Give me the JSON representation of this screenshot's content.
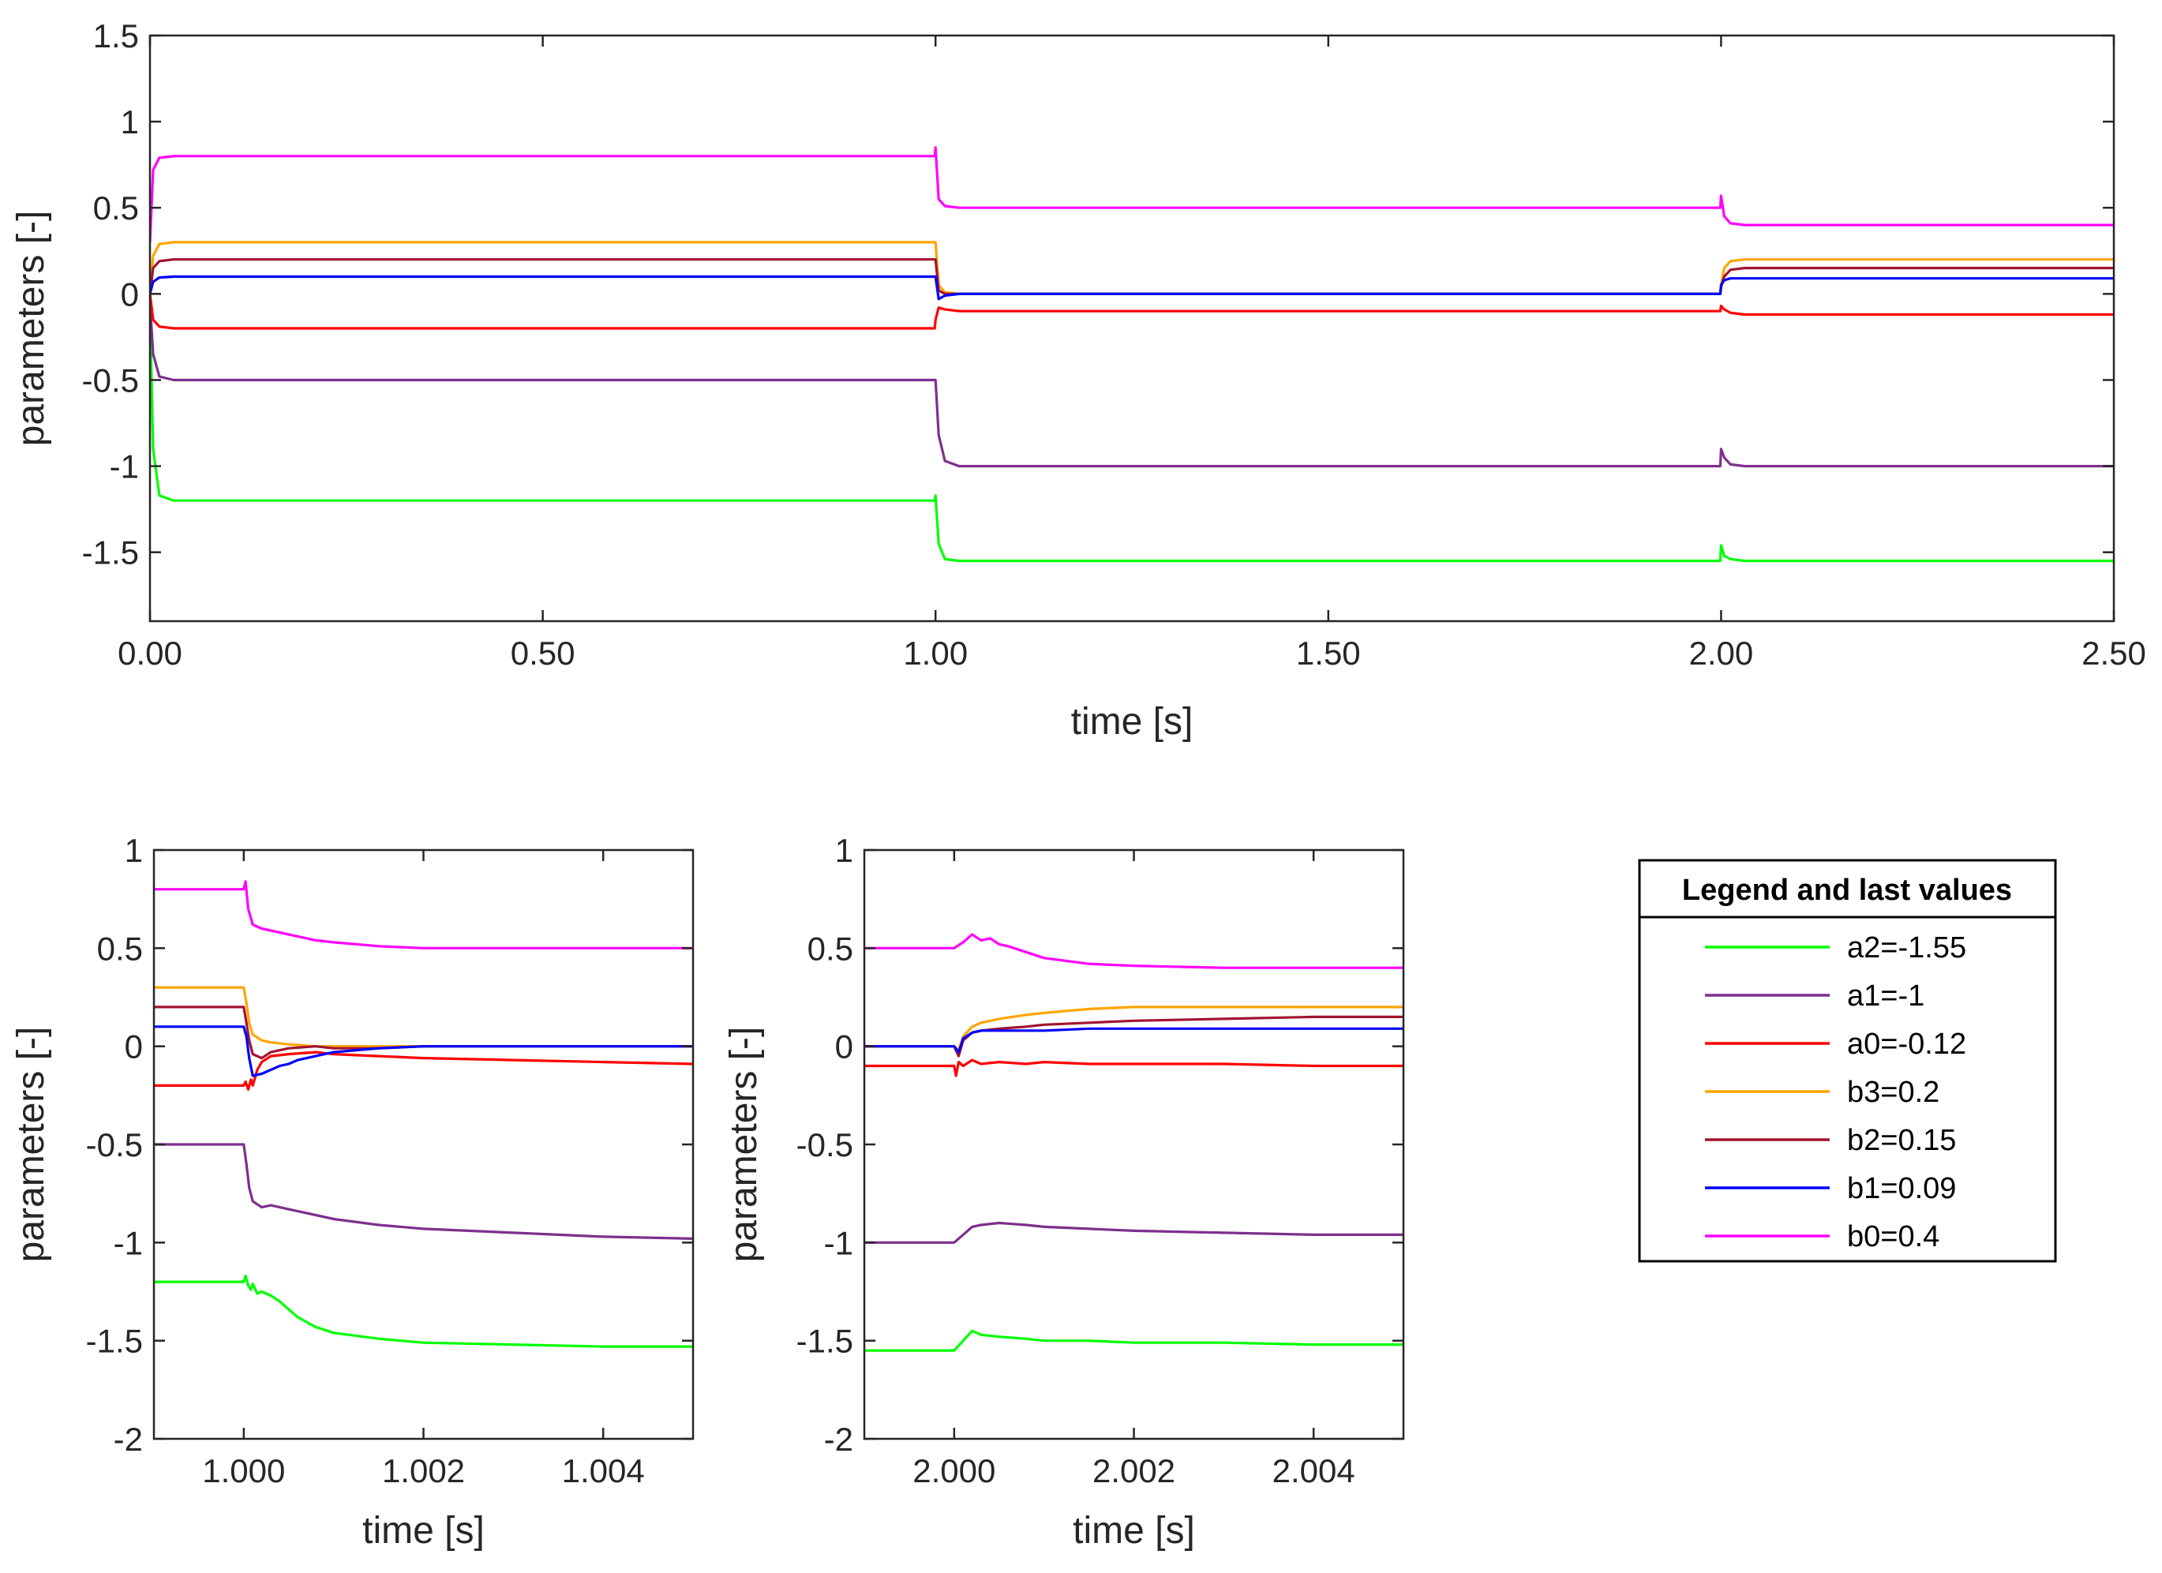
{
  "chart_data": [
    {
      "type": "line",
      "id": "overview",
      "xlabel": "time [s]",
      "ylabel": "parameters [-]",
      "xlim": [
        0,
        2.5
      ],
      "ylim": [
        -1.9,
        1.5
      ],
      "xticks": [
        0,
        0.5,
        1,
        1.5,
        2,
        2.5
      ],
      "xtick_labels": [
        "0.00",
        "0.50",
        "1.00",
        "1.50",
        "2.00",
        "2.50"
      ],
      "yticks": [
        -1.5,
        -1,
        -0.5,
        0,
        0.5,
        1,
        1.5
      ],
      "ytick_labels": [
        "-1.5",
        "-1",
        "-0.5",
        "0",
        "0.5",
        "1",
        "1.5"
      ],
      "grid": false,
      "series": [
        {
          "name": "a2",
          "color": "#00ff00",
          "x": [
            0,
            0.004,
            0.012,
            0.03,
            0.999,
            1.0,
            1.004,
            1.012,
            1.03,
            1.999,
            2.0,
            2.004,
            2.012,
            2.03,
            2.5
          ],
          "y": [
            -0.1,
            -0.9,
            -1.17,
            -1.2,
            -1.2,
            -1.17,
            -1.45,
            -1.54,
            -1.55,
            -1.55,
            -1.46,
            -1.52,
            -1.54,
            -1.55,
            -1.55
          ]
        },
        {
          "name": "a1",
          "color": "#7e2f8e",
          "x": [
            0,
            0.004,
            0.012,
            0.03,
            0.999,
            1.0,
            1.004,
            1.012,
            1.03,
            1.999,
            2.0,
            2.004,
            2.012,
            2.03,
            2.5
          ],
          "y": [
            -0.05,
            -0.35,
            -0.48,
            -0.5,
            -0.5,
            -0.5,
            -0.82,
            -0.97,
            -1.0,
            -1.0,
            -0.9,
            -0.95,
            -0.99,
            -1.0,
            -1.0
          ]
        },
        {
          "name": "a0",
          "color": "#ff0000",
          "x": [
            0,
            0.004,
            0.012,
            0.03,
            0.999,
            1.0,
            1.004,
            1.012,
            1.03,
            1.999,
            2.0,
            2.004,
            2.012,
            2.03,
            2.5
          ],
          "y": [
            0,
            -0.15,
            -0.19,
            -0.2,
            -0.2,
            -0.15,
            -0.08,
            -0.09,
            -0.1,
            -0.1,
            -0.07,
            -0.09,
            -0.11,
            -0.12,
            -0.12
          ]
        },
        {
          "name": "b3",
          "color": "#ffa500",
          "x": [
            0,
            0.004,
            0.012,
            0.03,
            0.999,
            1.0,
            1.004,
            1.012,
            1.03,
            1.999,
            2.0,
            2.004,
            2.012,
            2.03,
            2.5
          ],
          "y": [
            0,
            0.22,
            0.29,
            0.3,
            0.3,
            0.3,
            0.05,
            0.01,
            0.0,
            0.0,
            0.05,
            0.15,
            0.19,
            0.2,
            0.2
          ]
        },
        {
          "name": "b2",
          "color": "#a2142f",
          "x": [
            0,
            0.004,
            0.012,
            0.03,
            0.999,
            1.0,
            1.004,
            1.012,
            1.03,
            1.999,
            2.0,
            2.004,
            2.012,
            2.03,
            2.5
          ],
          "y": [
            0,
            0.15,
            0.19,
            0.2,
            0.2,
            0.2,
            0.02,
            0.0,
            0.0,
            0.0,
            0.04,
            0.1,
            0.14,
            0.15,
            0.15
          ]
        },
        {
          "name": "b1",
          "color": "#0000ff",
          "x": [
            0,
            0.004,
            0.012,
            0.03,
            0.999,
            1.0,
            1.004,
            1.012,
            1.03,
            1.999,
            2.0,
            2.004,
            2.012,
            2.03,
            2.5
          ],
          "y": [
            0,
            0.07,
            0.095,
            0.1,
            0.1,
            0.1,
            -0.03,
            -0.01,
            0.0,
            0.0,
            0.05,
            0.08,
            0.09,
            0.09,
            0.09
          ]
        },
        {
          "name": "b0",
          "color": "#ff00ff",
          "x": [
            0,
            0.004,
            0.012,
            0.03,
            0.999,
            1.0,
            1.004,
            1.012,
            1.03,
            1.999,
            2.0,
            2.004,
            2.012,
            2.03,
            2.5
          ],
          "y": [
            0.3,
            0.72,
            0.79,
            0.8,
            0.8,
            0.85,
            0.55,
            0.51,
            0.5,
            0.5,
            0.57,
            0.45,
            0.41,
            0.4,
            0.4
          ]
        }
      ]
    },
    {
      "type": "line",
      "id": "zoom1",
      "xlabel": "time [s]",
      "ylabel": "parameters [-]",
      "xlim": [
        0.999,
        1.005
      ],
      "ylim": [
        -2,
        1
      ],
      "xticks": [
        1.0,
        1.002,
        1.004
      ],
      "xtick_labels": [
        "1.000",
        "1.002",
        "1.004"
      ],
      "yticks": [
        -2,
        -1.5,
        -1,
        -0.5,
        0,
        0.5,
        1
      ],
      "ytick_labels": [
        "-2",
        "-1.5",
        "-1",
        "-0.5",
        "0",
        "0.5",
        "1"
      ],
      "grid": false,
      "series": [
        {
          "name": "a2",
          "color": "#00ff00",
          "x": [
            0.999,
            1.0,
            1.00002,
            1.00005,
            1.00008,
            1.0001,
            1.00015,
            1.0002,
            1.0003,
            1.0004,
            1.0005,
            1.0006,
            1.0008,
            1.001,
            1.0015,
            1.002,
            1.003,
            1.004,
            1.005
          ],
          "y": [
            -1.2,
            -1.2,
            -1.17,
            -1.22,
            -1.24,
            -1.21,
            -1.26,
            -1.25,
            -1.27,
            -1.3,
            -1.34,
            -1.38,
            -1.43,
            -1.46,
            -1.49,
            -1.51,
            -1.52,
            -1.53,
            -1.53
          ]
        },
        {
          "name": "a1",
          "color": "#7e2f8e",
          "x": [
            0.999,
            1.0,
            1.00003,
            1.00006,
            1.0001,
            1.0002,
            1.0003,
            1.0005,
            1.0008,
            1.001,
            1.0015,
            1.002,
            1.003,
            1.004,
            1.005
          ],
          "y": [
            -0.5,
            -0.5,
            -0.6,
            -0.72,
            -0.79,
            -0.82,
            -0.81,
            -0.83,
            -0.86,
            -0.88,
            -0.91,
            -0.93,
            -0.95,
            -0.97,
            -0.98
          ]
        },
        {
          "name": "a0",
          "color": "#ff0000",
          "x": [
            0.999,
            1.0,
            1.00002,
            1.00005,
            1.00008,
            1.0001,
            1.00015,
            1.0002,
            1.0003,
            1.0005,
            1.0008,
            1.001,
            1.0015,
            1.002,
            1.003,
            1.004,
            1.005
          ],
          "y": [
            -0.2,
            -0.2,
            -0.18,
            -0.22,
            -0.17,
            -0.2,
            -0.12,
            -0.08,
            -0.05,
            -0.04,
            -0.03,
            -0.04,
            -0.05,
            -0.06,
            -0.07,
            -0.08,
            -0.09
          ]
        },
        {
          "name": "b3",
          "color": "#ffa500",
          "x": [
            0.999,
            1.0,
            1.00003,
            1.00006,
            1.0001,
            1.0002,
            1.0003,
            1.0005,
            1.0008,
            1.001,
            1.0015,
            1.002,
            1.003,
            1.004,
            1.005
          ],
          "y": [
            0.3,
            0.3,
            0.22,
            0.12,
            0.06,
            0.03,
            0.02,
            0.01,
            0.0,
            0.0,
            0.0,
            0.0,
            0.0,
            0.0,
            0.0
          ]
        },
        {
          "name": "b2",
          "color": "#a2142f",
          "x": [
            0.999,
            1.0,
            1.00003,
            1.00006,
            1.0001,
            1.0002,
            1.0003,
            1.0005,
            1.0008,
            1.001,
            1.0015,
            1.002,
            1.003,
            1.004,
            1.005
          ],
          "y": [
            0.2,
            0.2,
            0.12,
            0.03,
            -0.04,
            -0.06,
            -0.03,
            -0.01,
            0.0,
            -0.01,
            -0.01,
            0.0,
            0.0,
            0.0,
            0.0
          ]
        },
        {
          "name": "b1",
          "color": "#0000ff",
          "x": [
            0.999,
            1.0,
            1.00003,
            1.00006,
            1.0001,
            1.0002,
            1.0003,
            1.0004,
            1.0005,
            1.0006,
            1.0008,
            1.001,
            1.0015,
            1.002,
            1.003,
            1.004,
            1.005
          ],
          "y": [
            0.1,
            0.1,
            0.05,
            -0.06,
            -0.15,
            -0.14,
            -0.12,
            -0.1,
            -0.09,
            -0.07,
            -0.05,
            -0.03,
            -0.01,
            0.0,
            0.0,
            0.0,
            0.0
          ]
        },
        {
          "name": "b0",
          "color": "#ff00ff",
          "x": [
            0.999,
            1.0,
            1.00002,
            1.00005,
            1.0001,
            1.0002,
            1.0003,
            1.0004,
            1.0005,
            1.0006,
            1.0008,
            1.001,
            1.0015,
            1.002,
            1.003,
            1.004,
            1.005
          ],
          "y": [
            0.8,
            0.8,
            0.84,
            0.7,
            0.62,
            0.6,
            0.59,
            0.58,
            0.57,
            0.56,
            0.54,
            0.53,
            0.51,
            0.5,
            0.5,
            0.5,
            0.5
          ]
        }
      ]
    },
    {
      "type": "line",
      "id": "zoom2",
      "xlabel": "time [s]",
      "ylabel": "parameters [-]",
      "xlim": [
        1.999,
        2.005
      ],
      "ylim": [
        -2,
        1
      ],
      "xticks": [
        2.0,
        2.002,
        2.004
      ],
      "xtick_labels": [
        "2.000",
        "2.002",
        "2.004"
      ],
      "yticks": [
        -2,
        -1.5,
        -1,
        -0.5,
        0,
        0.5,
        1
      ],
      "ytick_labels": [
        "-2",
        "-1.5",
        "-1",
        "-0.5",
        "0",
        "0.5",
        "1"
      ],
      "grid": false,
      "series": [
        {
          "name": "a2",
          "color": "#00ff00",
          "x": [
            1.999,
            2.0,
            2.0001,
            2.0002,
            2.0003,
            2.0005,
            2.0008,
            2.001,
            2.0015,
            2.002,
            2.003,
            2.004,
            2.005
          ],
          "y": [
            -1.55,
            -1.55,
            -1.5,
            -1.45,
            -1.47,
            -1.48,
            -1.49,
            -1.5,
            -1.5,
            -1.51,
            -1.51,
            -1.52,
            -1.52
          ]
        },
        {
          "name": "a1",
          "color": "#7e2f8e",
          "x": [
            1.999,
            2.0,
            2.0001,
            2.0002,
            2.0003,
            2.0005,
            2.0008,
            2.001,
            2.0015,
            2.002,
            2.003,
            2.004,
            2.005
          ],
          "y": [
            -1.0,
            -1.0,
            -0.96,
            -0.92,
            -0.91,
            -0.9,
            -0.91,
            -0.92,
            -0.93,
            -0.94,
            -0.95,
            -0.96,
            -0.96
          ]
        },
        {
          "name": "a0",
          "color": "#ff0000",
          "x": [
            1.999,
            2.0,
            2.00002,
            2.00005,
            2.0001,
            2.0002,
            2.0003,
            2.0005,
            2.0008,
            2.001,
            2.0015,
            2.002,
            2.003,
            2.004,
            2.005
          ],
          "y": [
            -0.1,
            -0.1,
            -0.15,
            -0.08,
            -0.1,
            -0.07,
            -0.09,
            -0.08,
            -0.09,
            -0.08,
            -0.09,
            -0.09,
            -0.09,
            -0.1,
            -0.1
          ]
        },
        {
          "name": "b3",
          "color": "#ffa500",
          "x": [
            1.999,
            2.0,
            2.00005,
            2.0001,
            2.0002,
            2.0003,
            2.0005,
            2.0008,
            2.001,
            2.0015,
            2.002,
            2.003,
            2.004,
            2.005
          ],
          "y": [
            0.0,
            0.0,
            -0.02,
            0.05,
            0.1,
            0.12,
            0.14,
            0.16,
            0.17,
            0.19,
            0.2,
            0.2,
            0.2,
            0.2
          ]
        },
        {
          "name": "b2",
          "color": "#a2142f",
          "x": [
            1.999,
            2.0,
            2.00005,
            2.0001,
            2.0002,
            2.0003,
            2.0005,
            2.0008,
            2.001,
            2.0015,
            2.002,
            2.003,
            2.004,
            2.005
          ],
          "y": [
            0.0,
            0.0,
            -0.05,
            0.03,
            0.07,
            0.08,
            0.09,
            0.1,
            0.11,
            0.12,
            0.13,
            0.14,
            0.15,
            0.15
          ]
        },
        {
          "name": "b1",
          "color": "#0000ff",
          "x": [
            1.999,
            2.0,
            2.00005,
            2.0001,
            2.0002,
            2.0003,
            2.0005,
            2.0008,
            2.001,
            2.0015,
            2.002,
            2.003,
            2.004,
            2.005
          ],
          "y": [
            0.0,
            0.0,
            -0.03,
            0.04,
            0.07,
            0.08,
            0.08,
            0.08,
            0.08,
            0.09,
            0.09,
            0.09,
            0.09,
            0.09
          ]
        },
        {
          "name": "b0",
          "color": "#ff00ff",
          "x": [
            1.999,
            2.0,
            2.0001,
            2.0002,
            2.0003,
            2.0004,
            2.0005,
            2.0006,
            2.0008,
            2.001,
            2.0015,
            2.002,
            2.003,
            2.004,
            2.005
          ],
          "y": [
            0.5,
            0.5,
            0.53,
            0.57,
            0.54,
            0.55,
            0.52,
            0.51,
            0.48,
            0.45,
            0.42,
            0.41,
            0.4,
            0.4,
            0.4
          ]
        }
      ]
    }
  ],
  "legend": {
    "title": "Legend and last values",
    "entries": [
      {
        "label": "a2=-1.55",
        "color": "#00ff00"
      },
      {
        "label": "a1=-1",
        "color": "#7e2f8e"
      },
      {
        "label": "a0=-0.12",
        "color": "#ff0000"
      },
      {
        "label": "b3=0.2",
        "color": "#ffa500"
      },
      {
        "label": "b2=0.15",
        "color": "#a2142f"
      },
      {
        "label": "b1=0.09",
        "color": "#0000ff"
      },
      {
        "label": "b0=0.4",
        "color": "#ff00ff"
      }
    ]
  }
}
